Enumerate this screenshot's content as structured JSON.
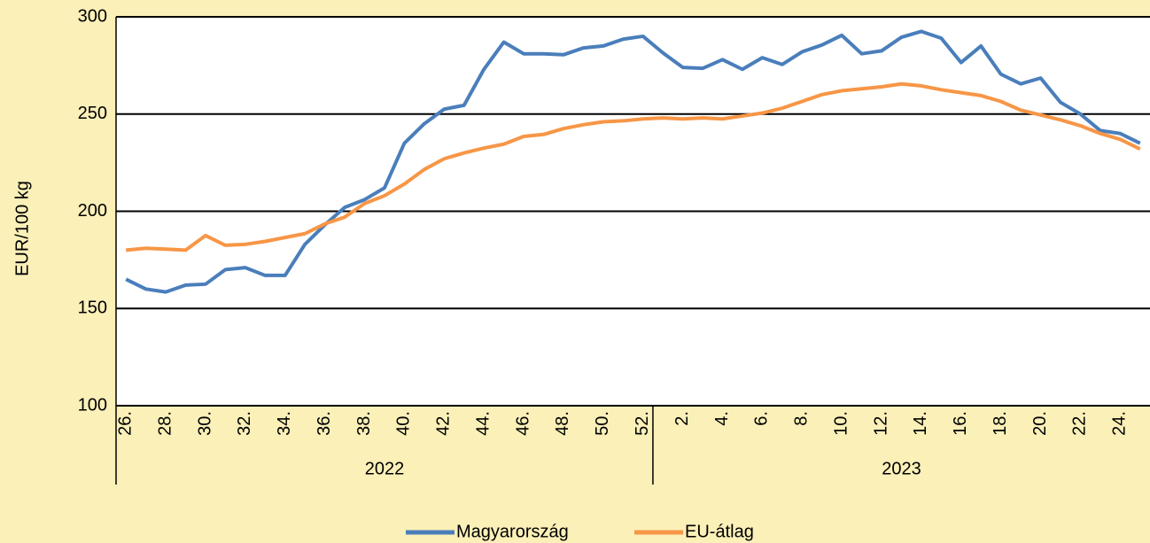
{
  "chart_data": {
    "type": "line",
    "ylabel": "EUR/100 kg",
    "categories": [
      "26.",
      null,
      "28.",
      null,
      "30.",
      null,
      "32.",
      null,
      "34.",
      null,
      "36.",
      null,
      "38.",
      null,
      "40.",
      null,
      "42.",
      null,
      "44.",
      null,
      "46.",
      null,
      "48.",
      null,
      "50.",
      null,
      "52.",
      null,
      "2.",
      null,
      "4.",
      null,
      "6.",
      null,
      "8.",
      null,
      "10.",
      null,
      "12.",
      null,
      "14.",
      null,
      "16.",
      null,
      "18.",
      null,
      "20.",
      null,
      "22.",
      null,
      "24.",
      null
    ],
    "groups": [
      {
        "label": "2022",
        "size": 27
      },
      {
        "label": "2023",
        "size": 25
      }
    ],
    "series": [
      {
        "name": "Magyarország",
        "color": "#4a7ebb",
        "values": [
          165,
          160,
          158.5,
          162,
          162.5,
          170,
          171,
          167,
          167,
          183,
          193,
          202,
          206,
          212,
          235,
          245,
          252.5,
          254.5,
          273,
          287,
          281,
          281,
          280.5,
          284,
          285,
          288.5,
          290,
          281.5,
          274,
          273.5,
          278,
          273,
          279,
          275.5,
          282,
          285.5,
          290.5,
          281,
          282.5,
          289.5,
          292.5,
          289,
          276.5,
          285,
          270.5,
          265.5,
          268.5,
          256,
          250,
          241.5,
          240,
          235
        ]
      },
      {
        "name": "EU-átlag",
        "color": "#f79646",
        "values": [
          180,
          181,
          180.5,
          180,
          187.5,
          182.5,
          183,
          184.5,
          186.5,
          188.5,
          193.5,
          197,
          204,
          208,
          214,
          221.5,
          227,
          230,
          232.5,
          234.5,
          238.5,
          239.5,
          242.5,
          244.5,
          246,
          246.5,
          247.5,
          248,
          247.5,
          248,
          247.5,
          249,
          250.5,
          253,
          256.5,
          260,
          262,
          263,
          264,
          265.5,
          264.5,
          262.5,
          261,
          259.5,
          256.5,
          252,
          249.5,
          247,
          244,
          240,
          237,
          232
        ]
      }
    ],
    "ylim": [
      100,
      300
    ],
    "yticks": [
      100,
      150,
      200,
      250,
      300
    ],
    "grid": true,
    "legend": "bottom"
  }
}
